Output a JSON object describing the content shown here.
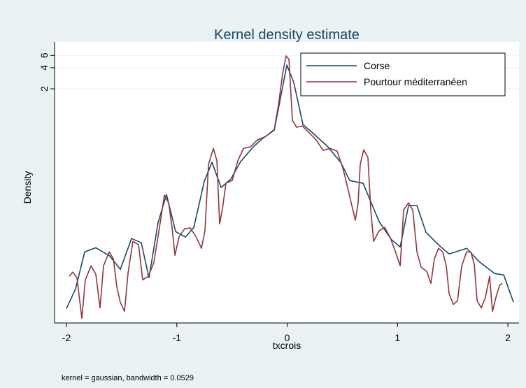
{
  "chart_data": {
    "type": "line",
    "title": "Kernel density estimate",
    "x_label": "txcrois",
    "y_label": "Density",
    "note": "kernel = gaussian, bandwidth = 0.0529",
    "log_y": true,
    "grid": true,
    "legend": "top-right",
    "xlim": [
      -2.108,
      2.101
    ],
    "ylim": [
      0.0009,
      9.35
    ],
    "xticks": [
      -2,
      -1,
      0,
      1,
      2
    ],
    "yticks": [
      2,
      4,
      6
    ],
    "series": [
      {
        "name": "Corse",
        "color": "#1a476f",
        "x": [
          -2,
          -1.918,
          -1.835,
          -1.734,
          -1.607,
          -1.512,
          -1.41,
          -1.322,
          -1.252,
          -1.17,
          -1.094,
          -1.011,
          -0.922,
          -0.846,
          -0.751,
          -0.681,
          -0.599,
          -0.51,
          -0.422,
          -0.307,
          -0.231,
          -0.117,
          -0.003,
          0.06,
          0.143,
          0.231,
          0.364,
          0.485,
          0.567,
          0.688,
          0.834,
          0.948,
          1.024,
          1.1,
          1.176,
          1.258,
          1.379,
          1.468,
          1.626,
          1.74,
          1.88,
          1.962,
          2.051
        ],
        "values": [
          0.00145,
          0.00276,
          0.00935,
          0.0107,
          0.00815,
          0.00526,
          0.0145,
          0.0126,
          0.00399,
          0.0246,
          0.0618,
          0.0182,
          0.0152,
          0.0209,
          0.0957,
          0.178,
          0.0778,
          0.103,
          0.182,
          0.296,
          0.381,
          0.514,
          4.38,
          2.46,
          0.618,
          0.469,
          0.303,
          0.178,
          0.0979,
          0.0893,
          0.0252,
          0.0138,
          0.011,
          0.0428,
          0.0428,
          0.0178,
          0.0115,
          0.00873,
          0.0105,
          0.00678,
          0.00458,
          0.00438,
          0.00178
        ]
      },
      {
        "name": "Pourtour méditerranéen",
        "color": "#90353b",
        "x": [
          -1.975,
          -1.943,
          -1.905,
          -1.861,
          -1.829,
          -1.778,
          -1.734,
          -1.696,
          -1.664,
          -1.613,
          -1.575,
          -1.544,
          -1.512,
          -1.474,
          -1.442,
          -1.398,
          -1.347,
          -1.309,
          -1.258,
          -1.208,
          -1.157,
          -1.113,
          -1.074,
          -1.043,
          -1.017,
          -0.979,
          -0.929,
          -0.878,
          -0.827,
          -0.777,
          -0.745,
          -0.713,
          -0.669,
          -0.637,
          -0.612,
          -0.586,
          -0.555,
          -0.498,
          -0.447,
          -0.396,
          -0.333,
          -0.269,
          -0.193,
          -0.117,
          -0.079,
          -0.041,
          -0.009,
          0.016,
          0.048,
          0.086,
          0.136,
          0.2,
          0.263,
          0.326,
          0.389,
          0.453,
          0.504,
          0.536,
          0.58,
          0.618,
          0.643,
          0.662,
          0.694,
          0.732,
          0.758,
          0.783,
          0.834,
          0.884,
          0.935,
          0.986,
          1.024,
          1.056,
          1.1,
          1.138,
          1.176,
          1.214,
          1.265,
          1.303,
          1.334,
          1.372,
          1.41,
          1.442,
          1.468,
          1.506,
          1.544,
          1.582,
          1.626,
          1.664,
          1.696,
          1.721,
          1.759,
          1.797,
          1.835,
          1.861,
          1.892,
          1.924,
          1.949
        ],
        "values": [
          0.00418,
          0.0048,
          0.00399,
          0.00105,
          0.00372,
          0.0059,
          0.00448,
          0.00148,
          0.0059,
          0.00935,
          0.00743,
          0.00296,
          0.00178,
          0.00132,
          0.00469,
          0.0132,
          0.0118,
          0.00372,
          0.00418,
          0.00662,
          0.0209,
          0.0604,
          0.0469,
          0.0209,
          0.00834,
          0.0155,
          0.02,
          0.0205,
          0.0155,
          0.0105,
          0.0187,
          0.166,
          0.282,
          0.187,
          0.0235,
          0.039,
          0.0893,
          0.0979,
          0.187,
          0.282,
          0.296,
          0.372,
          0.418,
          0.526,
          1.18,
          3.32,
          5.9,
          5.26,
          0.71,
          0.564,
          0.59,
          0.469,
          0.372,
          0.264,
          0.282,
          0.258,
          0.148,
          0.0935,
          0.0469,
          0.0264,
          0.0469,
          0.166,
          0.27,
          0.209,
          0.0372,
          0.0132,
          0.0187,
          0.0209,
          0.0148,
          0.00893,
          0.0059,
          0.0372,
          0.0469,
          0.0372,
          0.00935,
          0.00564,
          0.00491,
          0.00332,
          0.00743,
          0.0105,
          0.00935,
          0.0059,
          0.00235,
          0.00166,
          0.00187,
          0.0059,
          0.00935,
          0.00935,
          0.00618,
          0.00187,
          0.00148,
          0.00209,
          0.00418,
          0.00132,
          0.00209,
          0.0031,
          0.00332
        ]
      }
    ]
  }
}
